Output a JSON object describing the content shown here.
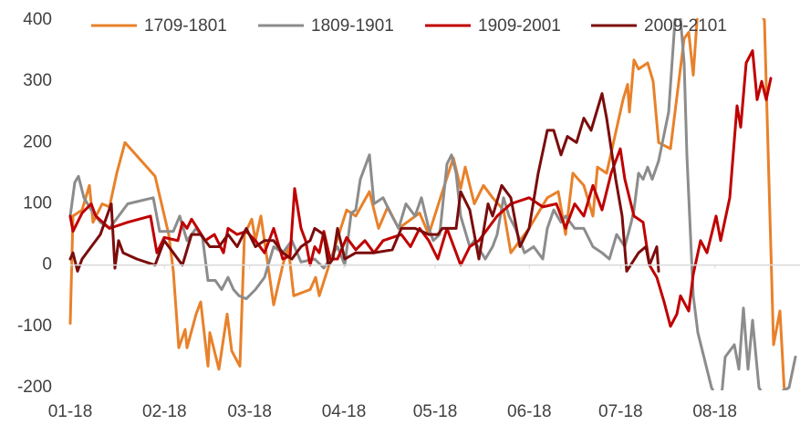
{
  "chart_data": {
    "type": "line",
    "xlim": [
      0,
      240
    ],
    "xticks": [
      {
        "value": 0,
        "label": "01-18"
      },
      {
        "value": 31,
        "label": "02-18"
      },
      {
        "value": 59,
        "label": "03-18"
      },
      {
        "value": 90,
        "label": "04-18"
      },
      {
        "value": 120,
        "label": "05-18"
      },
      {
        "value": 151,
        "label": "06-18"
      },
      {
        "value": 181,
        "label": "07-18"
      },
      {
        "value": 212,
        "label": "08-18"
      }
    ],
    "ylim": [
      -200,
      400
    ],
    "yticks": [
      -200,
      -100,
      0,
      100,
      200,
      300,
      400
    ],
    "legend": "top",
    "series": [
      {
        "name": "1709-1801",
        "color": "#e8812a",
        "x": [
          0,
          0.9,
          3.9,
          6.3,
          7.5,
          10.5,
          12.9,
          15.3,
          18,
          27.9,
          32.4,
          33.9,
          35.7,
          37.8,
          38.4,
          41.4,
          42.9,
          45.3,
          45.9,
          48.9,
          51.6,
          53.1,
          55.8,
          57.3,
          59.7,
          60.9,
          62.7,
          66.9,
          69.9,
          71.7,
          73.5,
          78.9,
          80.7,
          81.9,
          90.9,
          93.9,
          98.4,
          101.4,
          104.4,
          108,
          114.9,
          117.9,
          122.4,
          126,
          128.4,
          129.9,
          132.9,
          135.9,
          138.9,
          142.5,
          144.9,
          150.9,
          156.9,
          160.5,
          162.9,
          165.3,
          168.9,
          171.9,
          173.4,
          176.4,
          181.8,
          183.3,
          183.9,
          185.4,
          186.9,
          189.9,
          191.7,
          193.5,
          197.4,
          201.9,
          203.4,
          204.9,
          206.4,
          216.9,
          228.3,
          231.3,
          233.4,
          234.9
        ],
        "values": [
          -95,
          80,
          90,
          130,
          70,
          100,
          95,
          150,
          200,
          145,
          50,
          -10,
          -135,
          -105,
          -135,
          -80,
          -60,
          -165,
          -110,
          -170,
          -80,
          -140,
          -165,
          50,
          75,
          40,
          80,
          -65,
          0,
          30,
          -50,
          -40,
          -20,
          -50,
          90,
          80,
          120,
          60,
          95,
          60,
          85,
          50,
          120,
          175,
          125,
          160,
          100,
          130,
          110,
          90,
          20,
          60,
          110,
          120,
          50,
          150,
          130,
          80,
          160,
          150,
          270,
          295,
          250,
          335,
          320,
          330,
          300,
          200,
          190,
          370,
          380,
          310,
          420,
          500,
          400,
          -130,
          -75,
          -210
        ]
      },
      {
        "name": "1809-1901",
        "color": "#8c8c8c",
        "x": [
          0,
          1.5,
          2.7,
          4.5,
          6.9,
          9.9,
          12.9,
          18.9,
          27.3,
          29.4,
          33.9,
          36,
          38.4,
          41.4,
          43.5,
          45.3,
          47.7,
          49.8,
          51.9,
          53.7,
          55.5,
          57.9,
          60.9,
          63.9,
          66.9,
          69.9,
          72.9,
          75.9,
          80.4,
          83.4,
          87.9,
          90.3,
          92.4,
          93.9,
          95.4,
          96.9,
          98.4,
          99.9,
          102.9,
          105.3,
          108,
          110.4,
          113.4,
          115.5,
          117.9,
          119.4,
          121.5,
          123.9,
          125.4,
          126.9,
          128.4,
          131.4,
          132.9,
          136.5,
          138.9,
          140.4,
          142.5,
          144.3,
          146.4,
          149.4,
          152.4,
          155.4,
          156.9,
          159,
          161.4,
          162.9,
          165.9,
          168.9,
          171.9,
          174.9,
          177.3,
          179.7,
          182.4,
          184.5,
          185.4,
          186.9,
          188.4,
          189.9,
          191.4,
          193.5,
          196.8,
          198.9,
          200.4,
          201.9,
          202.8,
          203.7,
          204.9,
          206.4,
          210.9,
          213.9,
          215.4,
          218.4,
          219.9,
          221.4,
          222.9,
          224.4,
          226.5,
          228.9,
          236.4,
          238.5
        ],
        "values": [
          80,
          135,
          145,
          110,
          90,
          70,
          60,
          100,
          110,
          55,
          55,
          80,
          40,
          60,
          45,
          -25,
          -25,
          -40,
          -20,
          -40,
          -50,
          -55,
          -40,
          -20,
          30,
          20,
          40,
          5,
          10,
          -5,
          30,
          0,
          85,
          90,
          140,
          160,
          180,
          100,
          110,
          85,
          60,
          100,
          80,
          110,
          60,
          40,
          50,
          165,
          180,
          150,
          80,
          30,
          40,
          10,
          30,
          50,
          110,
          80,
          60,
          20,
          30,
          10,
          60,
          90,
          70,
          80,
          60,
          60,
          30,
          20,
          10,
          50,
          30,
          70,
          90,
          150,
          140,
          160,
          140,
          170,
          250,
          400,
          420,
          330,
          180,
          80,
          -50,
          -110,
          -200,
          -230,
          -150,
          -130,
          -170,
          -70,
          -170,
          -90,
          -200,
          -220,
          -200,
          -150
        ]
      },
      {
        "name": "1909-2001",
        "color": "#c00000",
        "x": [
          0,
          0.9,
          3.9,
          6.9,
          8.4,
          12.9,
          18.9,
          26.4,
          28.5,
          30.9,
          35.4,
          36.9,
          38.4,
          39.9,
          44.4,
          47.4,
          50.4,
          51.9,
          54.9,
          57.9,
          60.9,
          63.9,
          66.9,
          69.9,
          72.3,
          73.8,
          75.9,
          77.4,
          78.9,
          80.4,
          81.9,
          83.4,
          85.5,
          87.9,
          90.9,
          93.9,
          96.9,
          99.9,
          102.9,
          108.9,
          111.9,
          114.9,
          117.9,
          120.9,
          123.9,
          126.9,
          128.4,
          131.4,
          134.4,
          137.4,
          140.4,
          144.9,
          150.9,
          155.4,
          159.9,
          162.9,
          165.9,
          168.9,
          171.9,
          174.9,
          177.9,
          180.9,
          182.4,
          185.4,
          188.4,
          190.5,
          192.9,
          195.3,
          197.4,
          199.5,
          200.7,
          203.4,
          204.9,
          207.3,
          209.4,
          212.4,
          213.9,
          216.9,
          219.3,
          220.5,
          222.3,
          224.4,
          225.9,
          227.4,
          228.9,
          230.4
        ],
        "values": [
          80,
          55,
          85,
          100,
          80,
          60,
          70,
          80,
          20,
          45,
          40,
          70,
          60,
          75,
          40,
          50,
          20,
          60,
          50,
          55,
          40,
          20,
          60,
          10,
          15,
          125,
          60,
          40,
          0,
          30,
          20,
          55,
          10,
          10,
          45,
          25,
          40,
          20,
          40,
          50,
          30,
          60,
          40,
          10,
          60,
          20,
          0,
          30,
          40,
          60,
          80,
          100,
          110,
          95,
          100,
          60,
          100,
          80,
          130,
          90,
          150,
          190,
          140,
          80,
          70,
          0,
          -20,
          -60,
          -100,
          -80,
          -50,
          -75,
          -15,
          40,
          20,
          80,
          40,
          110,
          260,
          225,
          330,
          350,
          270,
          300,
          270,
          305
        ]
      },
      {
        "name": "2009-2101",
        "color": "#7b0c0c",
        "x": [
          0,
          0.9,
          2.4,
          3.9,
          6.9,
          9.9,
          13.5,
          14.7,
          15.9,
          17.4,
          21.9,
          27.9,
          30.9,
          33.9,
          36.9,
          39.9,
          42.9,
          45.9,
          48.9,
          51.9,
          54.9,
          57.9,
          60.9,
          63.9,
          66.9,
          69.9,
          72.9,
          75.9,
          78.9,
          80.4,
          83.4,
          84.9,
          86.4,
          87.9,
          90.3,
          93.9,
          99.9,
          105.9,
          108.9,
          113.4,
          117.9,
          120.9,
          122.4,
          126.9,
          128.4,
          131.4,
          134.4,
          137.4,
          138.9,
          141.9,
          144.9,
          147.9,
          150.9,
          153.9,
          156.9,
          159,
          161.4,
          163.5,
          166.5,
          168.9,
          171.3,
          174.9,
          176.4,
          179.4,
          181.5,
          183,
          186.9,
          189.3,
          190.5,
          192.9,
          193.5
        ],
        "values": [
          10,
          20,
          -10,
          10,
          30,
          50,
          100,
          -5,
          40,
          20,
          10,
          0,
          40,
          20,
          0,
          50,
          50,
          30,
          30,
          50,
          30,
          60,
          30,
          40,
          40,
          20,
          10,
          30,
          40,
          60,
          50,
          0,
          10,
          60,
          10,
          20,
          20,
          25,
          60,
          60,
          50,
          50,
          60,
          60,
          120,
          90,
          10,
          100,
          80,
          130,
          110,
          30,
          60,
          150,
          220,
          220,
          180,
          210,
          200,
          240,
          220,
          280,
          240,
          140,
          80,
          -10,
          20,
          30,
          0,
          30,
          -10
        ]
      }
    ]
  }
}
